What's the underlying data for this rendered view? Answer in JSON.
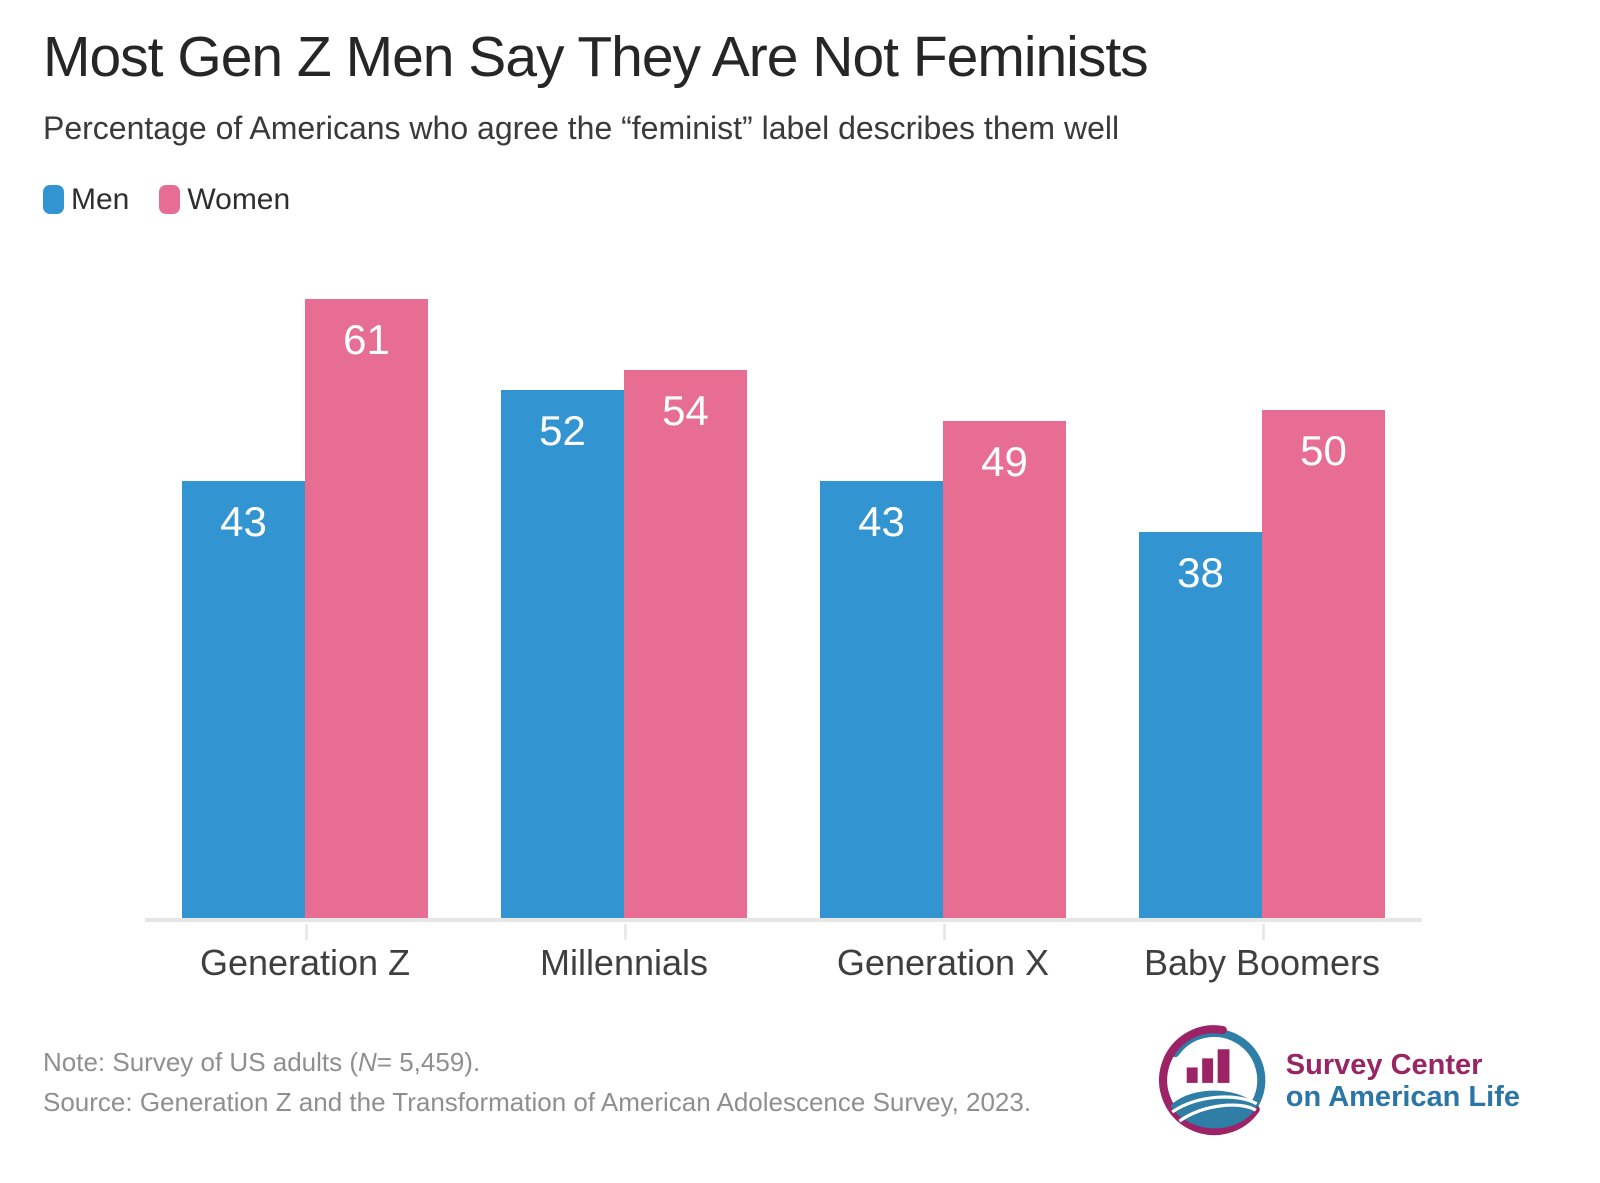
{
  "title": "Most Gen Z Men Say They Are Not Feminists",
  "subtitle": "Percentage of Americans who agree the “feminist” label describes them well",
  "chart_data": {
    "type": "bar",
    "categories": [
      "Generation Z",
      "Millennials",
      "Generation X",
      "Baby Boomers"
    ],
    "series": [
      {
        "name": "Men",
        "color": "#3295d2",
        "values": [
          43,
          52,
          43,
          38
        ]
      },
      {
        "name": "Women",
        "color": "#e76d92",
        "values": [
          61,
          54,
          49,
          50
        ]
      }
    ],
    "title": "Most Gen Z Men Say They Are Not Feminists",
    "xlabel": "",
    "ylabel": "",
    "ylim": [
      0,
      66
    ],
    "grid": false,
    "legend_position": "top-left",
    "value_label_position": "inside-top"
  },
  "footer": {
    "note": {
      "prefix": "Note: Survey of US adults (",
      "italic": "N",
      "suffix": "= 5,459)."
    },
    "source": "Source: Generation Z and the Transformation of American Adolescence Survey, 2023."
  },
  "logo": {
    "line1": "Survey Center",
    "line2": "on American Life",
    "magenta": "#9c2366",
    "blue": "#2e7ea6"
  }
}
